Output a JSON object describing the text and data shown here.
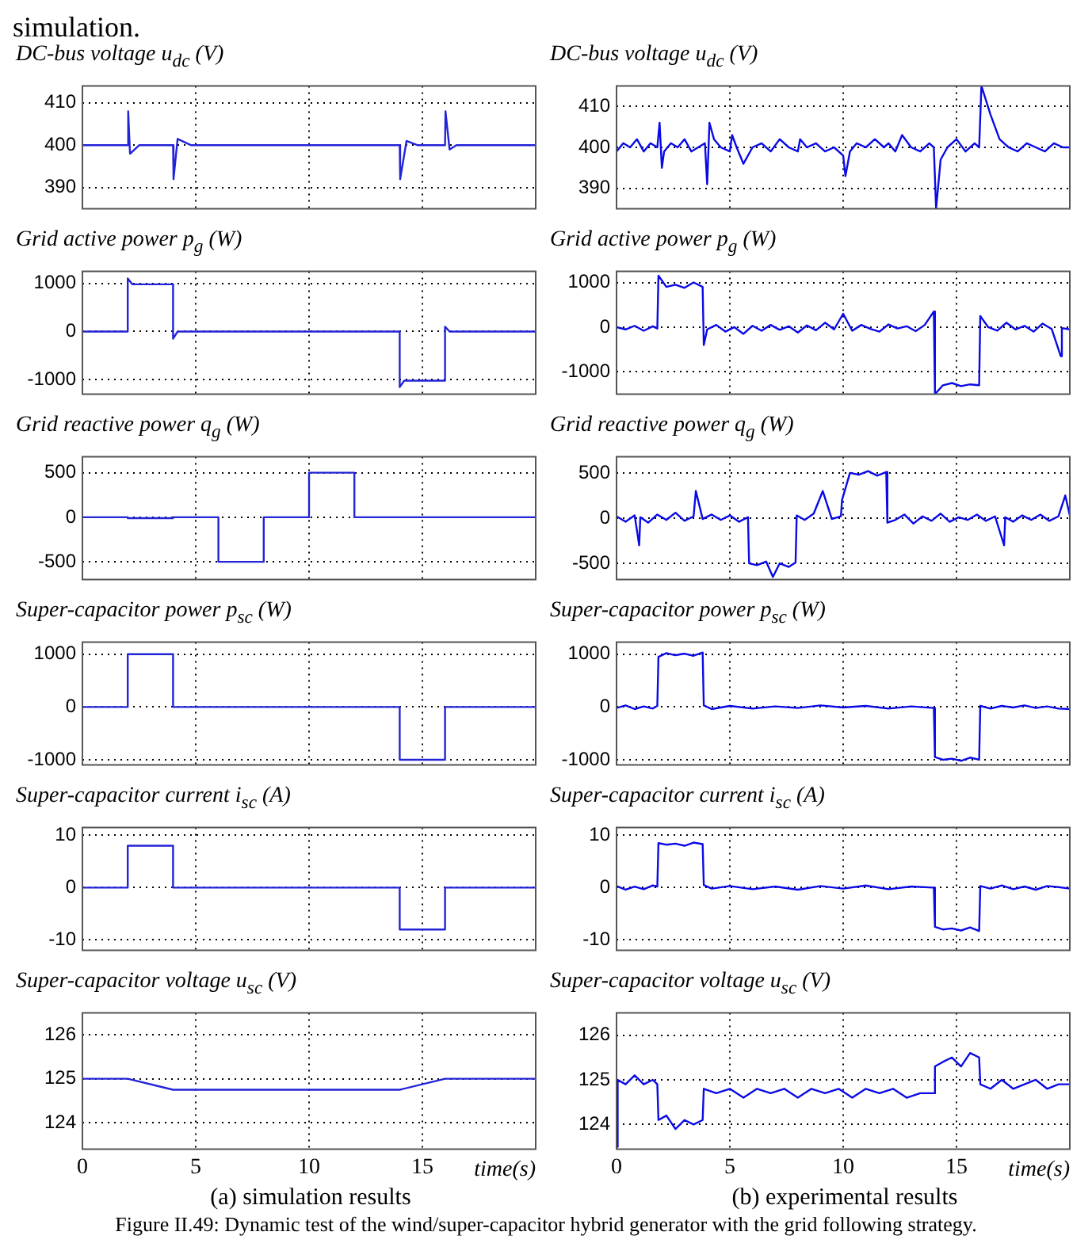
{
  "chart_data": [
    {
      "type": "line",
      "title": "DC-bus voltage u$_{dc}$ (V)",
      "annotations": [
        "simulation."
      ],
      "color": "#2323d8",
      "line_style": "solid",
      "marker": "none",
      "grid": true,
      "tick_labels": "y",
      "xlim": [
        0,
        20
      ],
      "xticks": [
        0,
        5,
        10,
        15
      ],
      "ylim": [
        385,
        414
      ],
      "yticks": [
        390,
        400,
        410
      ],
      "x": [
        0,
        2,
        2.02,
        2.1,
        2.5,
        4,
        4.02,
        4.2,
        4.8,
        14,
        14.02,
        14.3,
        14.8,
        16,
        16.02,
        16.2,
        16.5,
        20
      ],
      "values": [
        400,
        400,
        408,
        398,
        400,
        400,
        392,
        401.5,
        400,
        400,
        392,
        401,
        400,
        400,
        408,
        399,
        400,
        400
      ]
    },
    {
      "type": "line",
      "title": "Grid active power p$_{g}$ (W)",
      "color": "#2323d8",
      "line_style": "solid",
      "marker": "none",
      "grid": true,
      "tick_labels": "y",
      "xlim": [
        0,
        20
      ],
      "xticks": [
        0,
        5,
        10,
        15
      ],
      "ylim": [
        -1300,
        1250
      ],
      "yticks": [
        -1000,
        0,
        1000
      ],
      "x": [
        0,
        2,
        2,
        2.2,
        4,
        4,
        4.2,
        14,
        14,
        14.2,
        16,
        16,
        16.2,
        20
      ],
      "values": [
        0,
        0,
        1100,
        980,
        980,
        -150,
        0,
        0,
        -1150,
        -1020,
        -1020,
        100,
        0,
        0
      ]
    },
    {
      "type": "line",
      "title": "Grid reactive power q$_{g}$ (W)",
      "color": "#2323d8",
      "line_style": "solid",
      "marker": "none",
      "grid": true,
      "tick_labels": "y",
      "xlim": [
        0,
        20
      ],
      "xticks": [
        0,
        5,
        10,
        15
      ],
      "ylim": [
        -700,
        680
      ],
      "yticks": [
        -500,
        0,
        500
      ],
      "x": [
        0,
        2,
        2,
        4,
        4,
        6,
        6,
        8,
        8,
        10,
        10,
        12,
        12,
        20
      ],
      "values": [
        0,
        0,
        -10,
        -10,
        0,
        0,
        -500,
        -500,
        0,
        0,
        500,
        500,
        0,
        0
      ]
    },
    {
      "type": "line",
      "title": "Super-capacitor power p$_{sc}$ (W)",
      "color": "#2323d8",
      "line_style": "solid",
      "marker": "none",
      "grid": true,
      "tick_labels": "y",
      "xlim": [
        0,
        20
      ],
      "xticks": [
        0,
        5,
        10,
        15
      ],
      "ylim": [
        -1100,
        1230
      ],
      "yticks": [
        -1000,
        0,
        1000
      ],
      "x": [
        0,
        2,
        2,
        4,
        4,
        14,
        14,
        16,
        16,
        20
      ],
      "values": [
        0,
        0,
        1000,
        1000,
        0,
        0,
        -1000,
        -1000,
        0,
        0
      ]
    },
    {
      "type": "line",
      "title": "Super-capacitor current i$_{sc}$ (A)",
      "color": "#2323d8",
      "line_style": "solid",
      "marker": "none",
      "grid": true,
      "tick_labels": "y",
      "xlim": [
        0,
        20
      ],
      "xticks": [
        0,
        5,
        10,
        15
      ],
      "ylim": [
        -12,
        11.5
      ],
      "yticks": [
        -10,
        0,
        10
      ],
      "x": [
        0,
        2,
        2,
        4,
        4,
        14,
        14,
        16,
        16,
        20
      ],
      "values": [
        0,
        0,
        8,
        8,
        0,
        0,
        -8,
        -8,
        0,
        0
      ]
    },
    {
      "type": "line",
      "title": "Super-capacitor voltage u$_{sc}$ (V)",
      "xlabel": "time(s)",
      "annotations": [
        "(a) simulation results"
      ],
      "color": "#2323d8",
      "line_style": "solid",
      "marker": "none",
      "grid": true,
      "xlim": [
        0,
        20
      ],
      "xticks": [
        0,
        5,
        10,
        15
      ],
      "ylim": [
        123.4,
        126.5
      ],
      "yticks": [
        124,
        125,
        126
      ],
      "x": [
        0,
        2,
        4,
        14,
        16,
        20
      ],
      "values": [
        125,
        125,
        124.75,
        124.75,
        125,
        125
      ]
    },
    {
      "type": "line",
      "title": "DC-bus voltage u$_{dc}$ (V)",
      "color": "#0a0ae6",
      "line_style": "solid",
      "marker": "none",
      "grid": true,
      "tick_labels": "y",
      "xlim": [
        0,
        20
      ],
      "xticks": [
        0,
        5,
        10,
        15
      ],
      "ylim": [
        385,
        415
      ],
      "yticks": [
        390,
        400,
        410
      ],
      "x": [
        0,
        0.3,
        0.6,
        0.9,
        1.2,
        1.5,
        1.8,
        1.9,
        2.0,
        2.1,
        2.4,
        2.7,
        3.0,
        3.3,
        3.6,
        3.9,
        4.0,
        4.1,
        4.3,
        4.6,
        5.0,
        5.1,
        5.3,
        5.6,
        6.0,
        6.4,
        6.8,
        7.2,
        7.6,
        8.0,
        8.1,
        8.4,
        8.8,
        9.2,
        9.6,
        10.0,
        10.1,
        10.3,
        10.6,
        11.0,
        11.4,
        11.8,
        12.0,
        12.3,
        12.6,
        13.0,
        13.4,
        13.8,
        14.0,
        14.1,
        14.3,
        14.6,
        15.0,
        15.4,
        15.8,
        16.0,
        16.1,
        16.5,
        16.9,
        17.3,
        17.7,
        18.1,
        18.5,
        18.9,
        19.3,
        19.7,
        20
      ],
      "values": [
        399,
        401,
        400,
        402,
        399,
        401,
        400,
        406,
        395,
        399,
        401,
        400,
        402,
        399,
        400,
        401,
        391,
        406,
        402,
        400,
        399,
        403,
        400,
        396,
        400,
        401,
        399,
        402,
        400,
        399,
        402,
        400,
        401,
        399,
        400,
        398,
        393,
        399,
        401,
        400,
        402,
        400,
        401,
        399,
        403,
        400,
        399,
        401,
        400,
        385,
        397,
        400,
        402,
        399,
        401,
        400,
        415,
        408,
        402,
        400,
        399,
        401,
        400,
        399,
        401,
        400,
        400
      ]
    },
    {
      "type": "line",
      "title": "Grid active power p$_{g}$ (W)",
      "color": "#0a0ae6",
      "line_style": "solid",
      "marker": "none",
      "grid": true,
      "tick_labels": "y",
      "xlim": [
        0,
        20
      ],
      "xticks": [
        0,
        5,
        10,
        15
      ],
      "ylim": [
        -1500,
        1250
      ],
      "yticks": [
        -1000,
        0,
        1000
      ],
      "x": [
        0,
        0.4,
        0.8,
        1.2,
        1.6,
        1.8,
        1.85,
        2.2,
        2.6,
        3.0,
        3.4,
        3.8,
        3.85,
        4.0,
        4.4,
        4.8,
        5.2,
        5.6,
        6.0,
        6.4,
        6.8,
        7.2,
        7.6,
        8.0,
        8.4,
        8.8,
        9.2,
        9.6,
        10.0,
        10.4,
        10.8,
        11.2,
        11.6,
        12.0,
        12.4,
        12.8,
        13.2,
        13.6,
        14.0,
        14.05,
        14.4,
        14.8,
        15.2,
        15.6,
        16.0,
        16.05,
        16.4,
        16.8,
        17.2,
        17.6,
        18.0,
        18.4,
        18.8,
        19.2,
        19.6,
        19.65,
        20
      ],
      "values": [
        0,
        -50,
        30,
        -80,
        20,
        -30,
        1150,
        900,
        950,
        880,
        1000,
        900,
        -400,
        -50,
        50,
        -100,
        0,
        -150,
        30,
        -80,
        50,
        -60,
        20,
        -120,
        40,
        -70,
        100,
        -50,
        300,
        -80,
        50,
        -40,
        -100,
        60,
        -30,
        20,
        -90,
        50,
        350,
        -1500,
        -1300,
        -1250,
        -1320,
        -1280,
        -1300,
        250,
        0,
        -80,
        100,
        -50,
        30,
        -100,
        80,
        -40,
        -650,
        -20,
        -50
      ]
    },
    {
      "type": "line",
      "title": "Grid reactive power q$_{g}$ (W)",
      "color": "#0a0ae6",
      "line_style": "solid",
      "marker": "none",
      "grid": true,
      "tick_labels": "y",
      "xlim": [
        0,
        20
      ],
      "xticks": [
        0,
        5,
        10,
        15
      ],
      "ylim": [
        -680,
        680
      ],
      "yticks": [
        -500,
        0,
        500
      ],
      "x": [
        0,
        0.4,
        0.8,
        1.0,
        1.05,
        1.4,
        1.8,
        2.2,
        2.6,
        3.0,
        3.4,
        3.5,
        3.8,
        4.2,
        4.6,
        5.0,
        5.4,
        5.8,
        5.85,
        6.2,
        6.6,
        6.9,
        7.2,
        7.6,
        7.9,
        7.95,
        8.3,
        8.7,
        9.1,
        9.5,
        9.9,
        9.95,
        10.3,
        10.7,
        11.1,
        11.5,
        11.9,
        11.95,
        12.3,
        12.7,
        13.1,
        13.5,
        13.9,
        14.3,
        14.7,
        15.1,
        15.5,
        15.9,
        16.3,
        16.7,
        17.1,
        17.15,
        17.5,
        17.9,
        18.3,
        18.7,
        19.1,
        19.5,
        19.8,
        20
      ],
      "values": [
        20,
        -40,
        30,
        -300,
        10,
        -50,
        40,
        -20,
        60,
        -30,
        20,
        300,
        -10,
        40,
        -20,
        30,
        -40,
        10,
        -500,
        -520,
        -480,
        -650,
        -500,
        -540,
        -490,
        30,
        -20,
        50,
        300,
        -10,
        20,
        200,
        500,
        480,
        520,
        470,
        510,
        -50,
        -20,
        40,
        -60,
        20,
        -30,
        50,
        -40,
        10,
        -20,
        40,
        -30,
        20,
        -300,
        10,
        -40,
        30,
        -20,
        40,
        -30,
        20,
        250,
        30
      ]
    },
    {
      "type": "line",
      "title": "Super-capacitor power p$_{sc}$ (W)",
      "color": "#0a0ae6",
      "line_style": "solid",
      "marker": "none",
      "grid": true,
      "tick_labels": "y",
      "xlim": [
        0,
        20
      ],
      "xticks": [
        0,
        5,
        10,
        15
      ],
      "ylim": [
        -1100,
        1230
      ],
      "yticks": [
        -1000,
        0,
        1000
      ],
      "x": [
        0,
        0.4,
        0.8,
        1.2,
        1.6,
        1.8,
        1.85,
        2.2,
        2.6,
        3.0,
        3.4,
        3.8,
        3.85,
        4.2,
        5,
        6,
        7,
        8,
        9,
        10,
        11,
        12,
        13,
        14.0,
        14.05,
        14.4,
        14.8,
        15.2,
        15.6,
        16.0,
        16.05,
        16.5,
        17,
        17.5,
        18,
        18.5,
        19,
        19.5,
        20
      ],
      "values": [
        -20,
        30,
        -40,
        10,
        -30,
        20,
        950,
        1020,
        980,
        1010,
        970,
        1030,
        30,
        -40,
        20,
        -30,
        10,
        -20,
        30,
        -10,
        20,
        -30,
        10,
        -20,
        -950,
        -1000,
        -980,
        -1020,
        -960,
        -1000,
        20,
        -30,
        20,
        -10,
        30,
        -20,
        10,
        -30,
        -40
      ]
    },
    {
      "type": "line",
      "title": "Super-capacitor current i$_{sc}$ (A)",
      "color": "#0a0ae6",
      "line_style": "solid",
      "marker": "none",
      "grid": true,
      "tick_labels": "y",
      "xlim": [
        0,
        20
      ],
      "xticks": [
        0,
        5,
        10,
        15
      ],
      "ylim": [
        -12,
        11.5
      ],
      "yticks": [
        -10,
        0,
        10
      ],
      "x": [
        0,
        0.4,
        0.8,
        1.2,
        1.6,
        1.8,
        1.85,
        2.2,
        2.6,
        3.0,
        3.4,
        3.8,
        3.85,
        4.2,
        5,
        6,
        7,
        8,
        9,
        10,
        11,
        12,
        13,
        14.0,
        14.05,
        14.4,
        14.8,
        15.2,
        15.6,
        16.0,
        16.05,
        16.5,
        17,
        17.5,
        18,
        18.5,
        19,
        19.5,
        20
      ],
      "values": [
        0.3,
        -0.4,
        0.2,
        -0.3,
        0.4,
        0.2,
        8.5,
        8.2,
        8.4,
        8.0,
        8.6,
        8.3,
        0.5,
        -0.2,
        0.3,
        -0.3,
        0.2,
        -0.4,
        0.3,
        -0.2,
        0.4,
        -0.3,
        0.2,
        0,
        -7.5,
        -8.0,
        -7.8,
        -8.2,
        -7.6,
        -8.3,
        0.3,
        -0.2,
        0.4,
        -0.3,
        0.2,
        -0.4,
        0.3,
        0.1,
        -0.2
      ]
    },
    {
      "type": "line",
      "title": "Super-capacitor voltage u$_{sc}$ (V)",
      "xlabel": "time(s)",
      "annotations": [
        "(b) experimental results",
        "Figure II.49: Dynamic test of the wind/super-capacitor hybrid generator with the grid following strategy."
      ],
      "color": "#0a0ae6",
      "line_style": "solid",
      "marker": "none",
      "grid": true,
      "xlim": [
        0,
        20
      ],
      "xticks": [
        0,
        5,
        10,
        15
      ],
      "ylim": [
        123.45,
        126.5
      ],
      "yticks": [
        124,
        125,
        126
      ],
      "x": [
        0,
        0.05,
        0.4,
        0.8,
        1.2,
        1.6,
        1.8,
        1.85,
        2.2,
        2.6,
        3.0,
        3.4,
        3.8,
        3.85,
        4.4,
        5,
        5.6,
        6.2,
        6.8,
        7.4,
        8,
        8.6,
        9.2,
        9.8,
        10.4,
        11,
        11.6,
        12.2,
        12.8,
        13.4,
        14.0,
        14.05,
        14.4,
        14.8,
        15.2,
        15.6,
        16.0,
        16.05,
        16.5,
        17,
        17.5,
        18,
        18.5,
        19,
        19.5,
        20
      ],
      "values": [
        123.5,
        125.0,
        124.9,
        125.1,
        124.9,
        125.0,
        124.9,
        124.1,
        124.2,
        123.9,
        124.1,
        124.0,
        124.1,
        124.8,
        124.7,
        124.8,
        124.6,
        124.8,
        124.7,
        124.8,
        124.6,
        124.8,
        124.7,
        124.8,
        124.6,
        124.8,
        124.7,
        124.8,
        124.6,
        124.7,
        124.7,
        125.3,
        125.4,
        125.5,
        125.3,
        125.6,
        125.5,
        124.9,
        124.8,
        125.0,
        124.8,
        124.9,
        125.0,
        124.8,
        124.9,
        124.9
      ]
    }
  ]
}
